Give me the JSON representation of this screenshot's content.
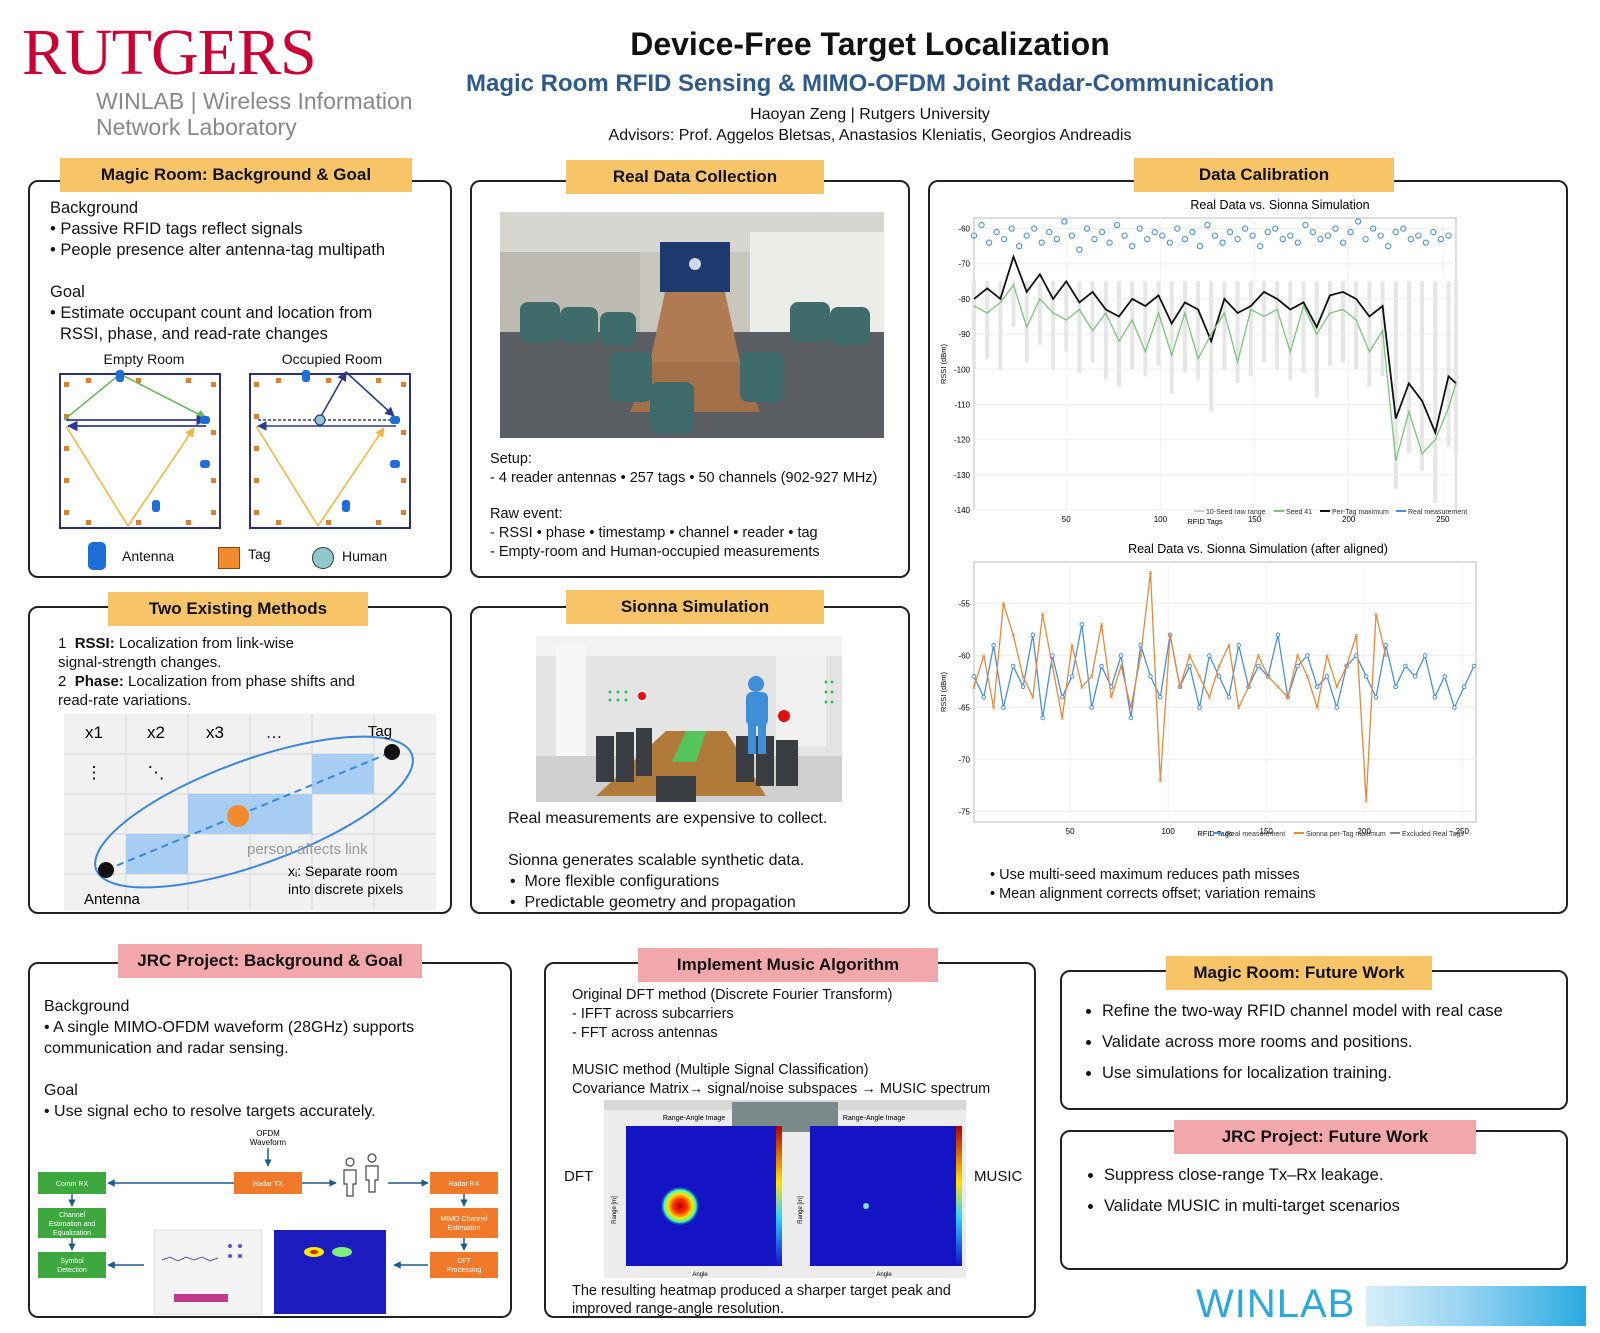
{
  "header": {
    "logo_main": "RUTGERS",
    "logo_sub1": "WINLAB | Wireless Information",
    "logo_sub2": "Network Laboratory",
    "title": "Device-Free Target Localization",
    "subtitle": "Magic Room RFID Sensing & MIMO-OFDM Joint Radar-Communication",
    "author": "Haoyan Zeng  |  Rutgers University",
    "advisors": "Advisors: Prof. Aggelos Bletsas, Anastasios Kleniatis, Georgios Andreadis"
  },
  "colors": {
    "gold": "#f7c468",
    "pink": "#f2a8ab",
    "blue_title": "#2e5a8e",
    "winlab": "#29a9e0"
  },
  "magic_bg": {
    "title": "Magic Room: Background & Goal",
    "bg_heading": "Background",
    "bg_1": "• Passive RFID tags reflect signals",
    "bg_2": "• People presence alter antenna-tag multipath",
    "goal_heading": "Goal",
    "goal_1": "• Estimate occupant count and location from",
    "goal_2": "RSSI, phase, and read-rate changes",
    "empty_label": "Empty Room",
    "occupied_label": "Occupied Room",
    "legend_antenna": "Antenna",
    "legend_tag": "Tag",
    "legend_human": "Human"
  },
  "real_data": {
    "title": "Real Data Collection",
    "setup_heading": "Setup:",
    "setup_1": "- 4 reader antennas • 257 tags • 50 channels (902-927 MHz)",
    "raw_heading": "Raw event:",
    "raw_1": "- RSSI • phase • timestamp • channel • reader • tag",
    "raw_2": "- Empty-room and Human-occupied measurements"
  },
  "calibration": {
    "title": "Data Calibration",
    "chart1_title": "Real Data vs. Sionna Simulation",
    "chart2_title": "Real Data vs. Sionna Simulation (after aligned)",
    "ylabel": "RSSI (dBm)",
    "xlabel": "RFID Tags",
    "note_1": "• Use multi-seed maximum reduces path misses",
    "note_2": "• Mean alignment corrects offset; variation remains"
  },
  "two_methods": {
    "title": "Two Existing Methods",
    "m1_num": "1",
    "m1_bold": "RSSI:",
    "m1_text": " Localization from link-wise",
    "m1_text2": "signal-strength changes.",
    "m2_num": "2",
    "m2_bold": "Phase:",
    "m2_text": " Localization from phase shifts and",
    "m2_text2": "read-rate variations.",
    "x1": "x1",
    "x2": "x2",
    "x3": "x3",
    "dots": "…",
    "vdots": "⋮",
    "ddots": "⋱",
    "tag": "Tag",
    "antenna": "Antenna",
    "person_link": "person affects link",
    "xi_1": "xᵢ: Separate room",
    "xi_2": "into discrete pixels"
  },
  "sionna": {
    "title": "Sionna Simulation",
    "line_1": "Real measurements are expensive to collect.",
    "line_2": "Sionna generates scalable synthetic data.",
    "bullet_1": "More flexible configurations",
    "bullet_2": "Predictable geometry and propagation"
  },
  "jrc_bg": {
    "title": "JRC Project: Background & Goal",
    "bg_heading": "Background",
    "bg_1": "• A single MIMO-OFDM waveform (28GHz) supports",
    "bg_2": "communication and radar sensing.",
    "goal_heading": "Goal",
    "goal_1": "• Use signal echo to resolve targets accurately.",
    "ofdm": "OFDM",
    "waveform": "Waveform",
    "comm_rx": "Comm RX",
    "radar_tx": "Radar TX",
    "radar_rx": "Radar RX",
    "chan_est_1": "Channel",
    "chan_est_2": "Estimation and",
    "chan_est_3": "Equalization",
    "symbol_1": "Symbol",
    "symbol_2": "Detection",
    "mimo_1": "MIMO Channel",
    "mimo_2": "Estimation",
    "dft_1": "DFT",
    "dft_2": "Processing"
  },
  "music": {
    "title": "Implement Music Algorithm",
    "l1": "Original DFT method (Discrete Fourier Transform)",
    "l2": "- IFFT across subcarriers",
    "l3": "- FFT across antennas",
    "l4": "MUSIC method (Multiple Signal Classification)",
    "l5": "Covariance Matrix→ signal/noise subspaces → MUSIC spectrum",
    "dft_label": "DFT",
    "music_label": "MUSIC",
    "img_title": "Range-Angle Image",
    "range_axis": "Range [m]",
    "angle_axis": "Angle",
    "result_1": "The resulting heatmap produced a sharper target peak and",
    "result_2": "improved range-angle resolution."
  },
  "magic_future": {
    "title": "Magic Room: Future Work",
    "items": [
      "Refine the two-way RFID channel model with real case",
      "Validate across more rooms and positions.",
      "Use simulations for localization training."
    ]
  },
  "jrc_future": {
    "title": "JRC Project: Future Work",
    "items": [
      "Suppress close-range Tx–Rx leakage.",
      "Validate MUSIC in multi-target scenarios"
    ]
  },
  "footer": {
    "winlab": "WINLAB"
  },
  "chart_data": [
    {
      "type": "line",
      "title": "Real Data vs. Sionna Simulation",
      "xlabel": "RFID Tags",
      "ylabel": "RSSI (dBm)",
      "xlim": [
        1,
        257
      ],
      "ylim": [
        -140,
        -57
      ],
      "xticks": [
        50,
        100,
        150,
        200,
        250
      ],
      "yticks": [
        -60,
        -70,
        -80,
        -90,
        -100,
        -110,
        -120,
        -130,
        -140
      ],
      "legend": [
        "10-Seed raw range",
        "Seed 41",
        "Per-Tag maximum",
        "Real measurement"
      ],
      "legend_position": "bottom-right",
      "series": [
        {
          "name": "Real measurement",
          "color": "#4a90d9",
          "style": "markers",
          "x": [
            1,
            5,
            9,
            13,
            17,
            21,
            25,
            29,
            33,
            37,
            41,
            45,
            49,
            53,
            57,
            61,
            65,
            69,
            73,
            77,
            81,
            85,
            89,
            93,
            97,
            101,
            105,
            109,
            113,
            117,
            121,
            125,
            129,
            133,
            137,
            141,
            145,
            149,
            153,
            157,
            161,
            165,
            169,
            173,
            177,
            181,
            185,
            189,
            193,
            197,
            201,
            205,
            209,
            213,
            217,
            221,
            225,
            229,
            233,
            237,
            241,
            245,
            249,
            253
          ],
          "y": [
            -62,
            -59,
            -64,
            -61,
            -63,
            -60,
            -65,
            -62,
            -60,
            -64,
            -61,
            -63,
            -58,
            -62,
            -66,
            -60,
            -63,
            -61,
            -64,
            -59,
            -62,
            -65,
            -60,
            -63,
            -61,
            -62,
            -64,
            -60,
            -63,
            -61,
            -65,
            -59,
            -62,
            -64,
            -61,
            -63,
            -60,
            -62,
            -65,
            -61,
            -60,
            -63,
            -62,
            -64,
            -59,
            -61,
            -63,
            -62,
            -60,
            -64,
            -61,
            -58,
            -63,
            -60,
            -62,
            -65,
            -61,
            -60,
            -63,
            -62,
            -64,
            -61,
            -63,
            -62
          ]
        },
        {
          "name": "Per-Tag maximum",
          "color": "#111111",
          "style": "line",
          "x": [
            1,
            8,
            15,
            22,
            29,
            36,
            43,
            50,
            57,
            64,
            71,
            78,
            85,
            92,
            99,
            106,
            113,
            120,
            127,
            134,
            141,
            148,
            155,
            162,
            169,
            176,
            183,
            190,
            197,
            204,
            211,
            218,
            225,
            232,
            239,
            246,
            253,
            257
          ],
          "y": [
            -80,
            -77,
            -80,
            -68,
            -78,
            -73,
            -80,
            -75,
            -81,
            -78,
            -83,
            -85,
            -80,
            -82,
            -79,
            -87,
            -81,
            -83,
            -92,
            -80,
            -84,
            -82,
            -78,
            -80,
            -83,
            -81,
            -88,
            -79,
            -78,
            -80,
            -85,
            -82,
            -114,
            -104,
            -109,
            -118,
            -102,
            -104
          ]
        },
        {
          "name": "Seed 41",
          "color": "#7cc47c",
          "style": "line",
          "x": [
            1,
            8,
            15,
            22,
            29,
            36,
            43,
            50,
            57,
            64,
            71,
            78,
            85,
            92,
            99,
            106,
            113,
            120,
            127,
            134,
            141,
            148,
            155,
            162,
            169,
            176,
            183,
            190,
            197,
            204,
            211,
            218,
            225,
            232,
            239,
            246,
            253,
            257
          ],
          "y": [
            -82,
            -84,
            -81,
            -76,
            -88,
            -80,
            -84,
            -86,
            -83,
            -89,
            -84,
            -92,
            -86,
            -95,
            -84,
            -96,
            -84,
            -97,
            -90,
            -84,
            -98,
            -83,
            -85,
            -83,
            -95,
            -82,
            -90,
            -84,
            -83,
            -86,
            -95,
            -89,
            -126,
            -112,
            -124,
            -120,
            -111,
            -104
          ]
        }
      ]
    },
    {
      "type": "line",
      "title": "Real Data vs. Sionna Simulation (after aligned)",
      "xlabel": "RFID Tags",
      "ylabel": "RSSI (dBm)",
      "xlim": [
        1,
        257
      ],
      "ylim": [
        -76,
        -51
      ],
      "xticks": [
        50,
        100,
        150,
        200,
        250
      ],
      "yticks": [
        -55,
        -60,
        -65,
        -70,
        -75
      ],
      "legend": [
        "Real measurement",
        "Sionna per-Tag maximum",
        "Excluded Real Tags"
      ],
      "legend_position": "bottom-right",
      "series": [
        {
          "name": "Real measurement",
          "color": "#4a90d9",
          "x": [
            1,
            6,
            11,
            16,
            21,
            26,
            31,
            36,
            41,
            46,
            51,
            56,
            61,
            66,
            71,
            76,
            81,
            86,
            91,
            96,
            101,
            106,
            111,
            116,
            121,
            126,
            131,
            136,
            141,
            146,
            151,
            156,
            161,
            166,
            171,
            176,
            181,
            186,
            191,
            196,
            201,
            206,
            211,
            216,
            221,
            226,
            231,
            236,
            241,
            246,
            251,
            256
          ],
          "y": [
            -62,
            -64,
            -59,
            -65,
            -61,
            -63,
            -58,
            -66,
            -60,
            -64,
            -62,
            -57,
            -65,
            -61,
            -63,
            -60,
            -66,
            -59,
            -62,
            -64,
            -58,
            -63,
            -61,
            -65,
            -60,
            -62,
            -64,
            -59,
            -63,
            -61,
            -62,
            -58,
            -64,
            -61,
            -60,
            -63,
            -62,
            -65,
            -61,
            -60,
            -62,
            -64,
            -59,
            -63,
            -61,
            -62,
            -60,
            -64,
            -62,
            -65,
            -63,
            -61
          ]
        },
        {
          "name": "Sionna per-Tag maximum",
          "color": "#e8883a",
          "x": [
            1,
            6,
            11,
            16,
            21,
            26,
            31,
            36,
            41,
            46,
            51,
            56,
            61,
            66,
            71,
            76,
            81,
            86,
            91,
            96,
            101,
            106,
            111,
            116,
            121,
            126,
            131,
            136,
            141,
            146,
            151,
            156,
            161,
            166,
            171,
            176,
            181,
            186,
            191,
            196,
            201,
            206,
            211
          ],
          "y": [
            -63,
            -60,
            -65,
            -55,
            -58,
            -62,
            -64,
            -56,
            -61,
            -66,
            -59,
            -63,
            -62,
            -57,
            -64,
            -61,
            -65,
            -60,
            -52,
            -72,
            -58,
            -63,
            -60,
            -62,
            -64,
            -61,
            -59,
            -65,
            -63,
            -60,
            -62,
            -63,
            -64,
            -60,
            -62,
            -65,
            -60,
            -63,
            -61,
            -58,
            -74,
            -56,
            -60
          ]
        }
      ]
    },
    {
      "type": "heatmap",
      "title": "Range-Angle Image",
      "xlabel": "Angle",
      "ylabel": "Range [m]",
      "panels": [
        "DFT",
        "MUSIC"
      ]
    }
  ]
}
